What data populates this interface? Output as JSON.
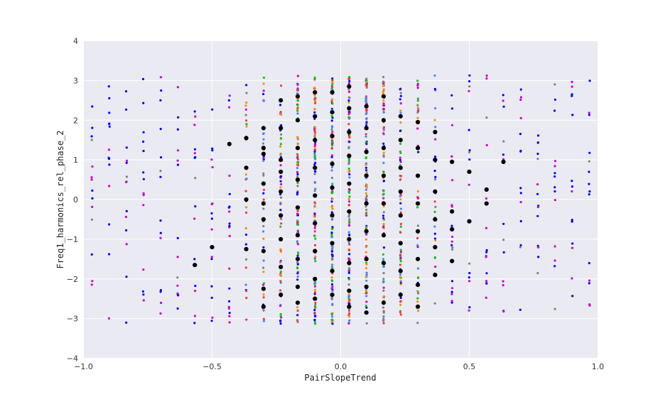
{
  "chart_data": {
    "type": "scatter",
    "title": "",
    "xlabel": "PairSlopeTrend",
    "ylabel": "Freq1_harmonics_rel_phase_2",
    "xlim": [
      -1.0,
      1.0
    ],
    "ylim": [
      -4,
      4
    ],
    "x_ticks": [
      -1.0,
      -0.5,
      0.0,
      0.5,
      1.0
    ],
    "x_tick_labels": [
      "−1.0",
      "−0.5",
      "0.0",
      "0.5",
      "1.0"
    ],
    "y_ticks": [
      -4,
      -3,
      -2,
      -1,
      0,
      1,
      2,
      3,
      4
    ],
    "y_tick_labels": [
      "−4",
      "−3",
      "−2",
      "−1",
      "0",
      "1",
      "2",
      "3",
      "4"
    ],
    "grid": true,
    "legend": "none",
    "background_color": "#eaeaf2",
    "x_columns": [
      -0.967,
      -0.9,
      -0.833,
      -0.767,
      -0.7,
      -0.633,
      -0.567,
      -0.5,
      -0.433,
      -0.367,
      -0.3,
      -0.233,
      -0.167,
      -0.1,
      -0.033,
      0.033,
      0.1,
      0.167,
      0.233,
      0.3,
      0.367,
      0.433,
      0.5,
      0.567,
      0.633,
      0.7,
      0.767,
      0.833,
      0.9,
      0.967
    ],
    "y_range": [
      -3.14,
      3.14
    ],
    "series_colors": [
      "#0000ff",
      "#cc00cc",
      "#ff8c00",
      "#00cc00",
      "#808080",
      "#ff3333",
      "#4488ff",
      "#000000"
    ],
    "black_points": [
      {
        "x": -0.567,
        "y": -1.65
      },
      {
        "x": -0.5,
        "y": -1.2
      },
      {
        "x": -0.433,
        "y": 1.4
      },
      {
        "x": -0.367,
        "y": 1.55
      },
      {
        "x": -0.367,
        "y": 0.0
      },
      {
        "x": -0.367,
        "y": -1.25
      },
      {
        "x": -0.367,
        "y": 0.8
      },
      {
        "x": -0.3,
        "y": 1.8
      },
      {
        "x": -0.3,
        "y": 1.15
      },
      {
        "x": -0.3,
        "y": 0.4
      },
      {
        "x": -0.3,
        "y": -0.5
      },
      {
        "x": -0.3,
        "y": -1.3
      },
      {
        "x": -0.3,
        "y": -2.25
      },
      {
        "x": -0.3,
        "y": -2.7
      },
      {
        "x": -0.3,
        "y": 1.3
      },
      {
        "x": -0.3,
        "y": -0.1
      },
      {
        "x": -0.233,
        "y": 2.5
      },
      {
        "x": -0.233,
        "y": 1.8
      },
      {
        "x": -0.233,
        "y": 1.0
      },
      {
        "x": -0.233,
        "y": 0.2
      },
      {
        "x": -0.233,
        "y": -0.4
      },
      {
        "x": -0.233,
        "y": -1.0
      },
      {
        "x": -0.233,
        "y": -1.7
      },
      {
        "x": -0.233,
        "y": -2.4
      },
      {
        "x": -0.233,
        "y": 0.7
      },
      {
        "x": -0.167,
        "y": 2.6
      },
      {
        "x": -0.167,
        "y": 2.0
      },
      {
        "x": -0.167,
        "y": 1.3
      },
      {
        "x": -0.167,
        "y": 0.5
      },
      {
        "x": -0.167,
        "y": -0.2
      },
      {
        "x": -0.167,
        "y": -0.9
      },
      {
        "x": -0.167,
        "y": -1.5
      },
      {
        "x": -0.167,
        "y": -2.2
      },
      {
        "x": -0.167,
        "y": -2.6
      },
      {
        "x": -0.1,
        "y": 2.7
      },
      {
        "x": -0.1,
        "y": 2.1
      },
      {
        "x": -0.1,
        "y": 1.5
      },
      {
        "x": -0.1,
        "y": 0.8
      },
      {
        "x": -0.1,
        "y": 0.1
      },
      {
        "x": -0.1,
        "y": -0.6
      },
      {
        "x": -0.1,
        "y": -1.3
      },
      {
        "x": -0.1,
        "y": -2.0
      },
      {
        "x": -0.1,
        "y": -2.5
      },
      {
        "x": -0.033,
        "y": 2.7
      },
      {
        "x": -0.033,
        "y": 2.2
      },
      {
        "x": -0.033,
        "y": 1.6
      },
      {
        "x": -0.033,
        "y": 0.9
      },
      {
        "x": -0.033,
        "y": 0.3
      },
      {
        "x": -0.033,
        "y": -0.4
      },
      {
        "x": -0.033,
        "y": -1.1
      },
      {
        "x": -0.033,
        "y": -1.8
      },
      {
        "x": -0.033,
        "y": -2.4
      },
      {
        "x": 0.033,
        "y": 2.85
      },
      {
        "x": 0.033,
        "y": 2.3
      },
      {
        "x": 0.033,
        "y": 1.7
      },
      {
        "x": 0.033,
        "y": 1.1
      },
      {
        "x": 0.033,
        "y": 0.4
      },
      {
        "x": 0.033,
        "y": -0.3
      },
      {
        "x": 0.033,
        "y": -1.0
      },
      {
        "x": 0.033,
        "y": -1.6
      },
      {
        "x": 0.033,
        "y": -2.3
      },
      {
        "x": 0.033,
        "y": -2.7
      },
      {
        "x": 0.1,
        "y": 2.35
      },
      {
        "x": 0.1,
        "y": 1.8
      },
      {
        "x": 0.1,
        "y": 1.2
      },
      {
        "x": 0.1,
        "y": 0.6
      },
      {
        "x": 0.1,
        "y": -0.1
      },
      {
        "x": 0.1,
        "y": -0.8
      },
      {
        "x": 0.1,
        "y": -1.5
      },
      {
        "x": 0.1,
        "y": -2.2
      },
      {
        "x": 0.1,
        "y": -2.85
      },
      {
        "x": 0.167,
        "y": 2.6
      },
      {
        "x": 0.167,
        "y": 2.0
      },
      {
        "x": 0.167,
        "y": 1.3
      },
      {
        "x": 0.167,
        "y": 0.6
      },
      {
        "x": 0.167,
        "y": -0.1
      },
      {
        "x": 0.167,
        "y": -0.9
      },
      {
        "x": 0.167,
        "y": -1.6
      },
      {
        "x": 0.167,
        "y": -2.6
      },
      {
        "x": 0.233,
        "y": 2.1
      },
      {
        "x": 0.233,
        "y": 1.5
      },
      {
        "x": 0.233,
        "y": 0.8
      },
      {
        "x": 0.233,
        "y": 0.2
      },
      {
        "x": 0.233,
        "y": -0.4
      },
      {
        "x": 0.233,
        "y": -1.1
      },
      {
        "x": 0.233,
        "y": -1.8
      },
      {
        "x": 0.233,
        "y": -2.4
      },
      {
        "x": 0.3,
        "y": 1.95
      },
      {
        "x": 0.3,
        "y": 1.3
      },
      {
        "x": 0.3,
        "y": 0.6
      },
      {
        "x": 0.3,
        "y": -0.1
      },
      {
        "x": 0.3,
        "y": -0.8
      },
      {
        "x": 0.3,
        "y": -1.5
      },
      {
        "x": 0.3,
        "y": -2.15
      },
      {
        "x": 0.3,
        "y": -2.7
      },
      {
        "x": 0.367,
        "y": 1.7
      },
      {
        "x": 0.367,
        "y": 1.0
      },
      {
        "x": 0.367,
        "y": 0.2
      },
      {
        "x": 0.367,
        "y": -0.5
      },
      {
        "x": 0.367,
        "y": -1.2
      },
      {
        "x": 0.367,
        "y": -1.9
      },
      {
        "x": 0.433,
        "y": 0.95
      },
      {
        "x": 0.433,
        "y": -0.3
      },
      {
        "x": 0.433,
        "y": -0.75
      },
      {
        "x": 0.433,
        "y": -1.55
      },
      {
        "x": 0.5,
        "y": 0.7
      },
      {
        "x": 0.5,
        "y": -0.55
      },
      {
        "x": 0.567,
        "y": 0.25
      },
      {
        "x": 0.567,
        "y": -0.1
      },
      {
        "x": 0.633,
        "y": 0.95
      }
    ]
  }
}
